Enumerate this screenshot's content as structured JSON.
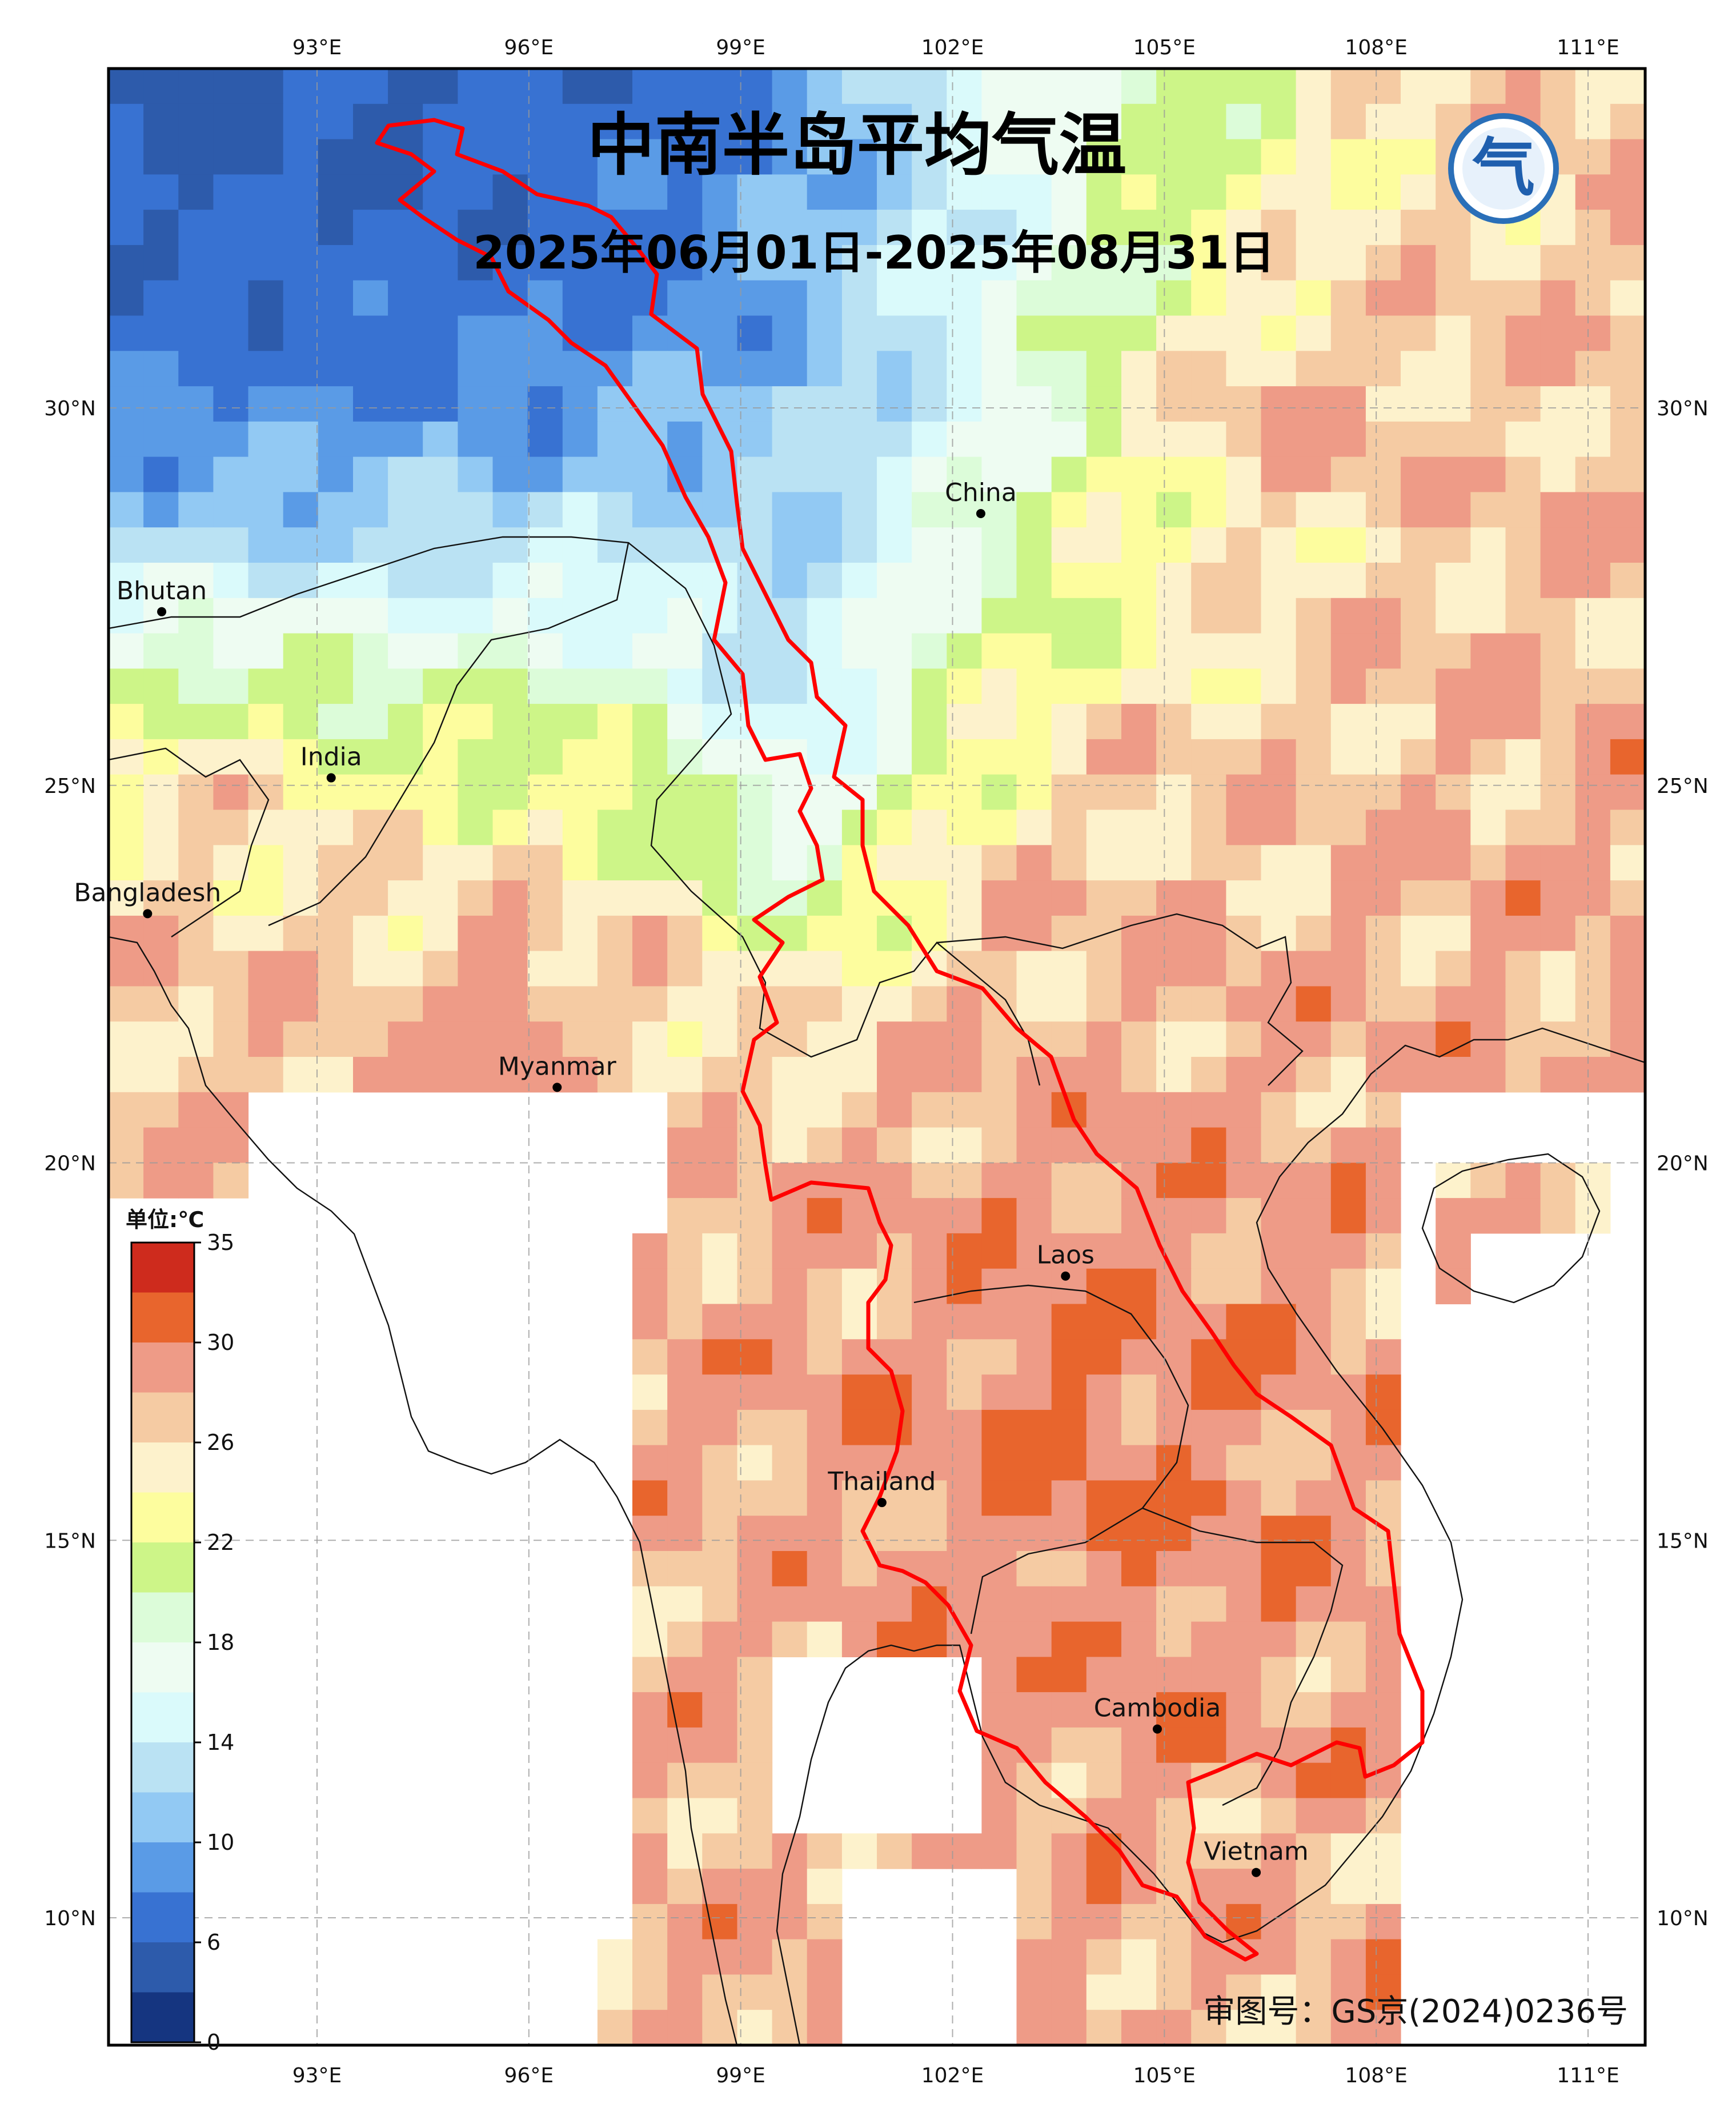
{
  "title": "中南半岛平均气温",
  "subtitle": "2025年06月01日-2025年08月31日",
  "credit": "审图号：GS京(2024)0236号",
  "lon_ticks": [
    "93°E",
    "96°E",
    "99°E",
    "102°E",
    "105°E",
    "108°E",
    "111°E"
  ],
  "lat_ticks": [
    "30°N",
    "25°N",
    "20°N",
    "15°N",
    "10°N"
  ],
  "colorbar": {
    "unit_label": "单位:℃",
    "tick_labels": [
      "35",
      "30",
      "26",
      "22",
      "18",
      "14",
      "10",
      "6",
      "0"
    ],
    "colors": [
      "#ce2b1d",
      "#e8652d",
      "#ee9b87",
      "#f5cba3",
      "#fdf2cc",
      "#fdfd9e",
      "#cdf588",
      "#dcfcd9",
      "#eefcf2",
      "#dafafb",
      "#bae2f3",
      "#92c9f3",
      "#5a9be6",
      "#3872d2",
      "#2d5bab",
      "#153580"
    ]
  },
  "places": [
    {
      "name": "China",
      "lon": 102.4,
      "lat": 28.6
    },
    {
      "name": "Bhutan",
      "lon": 90.8,
      "lat": 27.3
    },
    {
      "name": "India",
      "lon": 93.2,
      "lat": 25.1
    },
    {
      "name": "Bangladesh",
      "lon": 90.6,
      "lat": 23.3
    },
    {
      "name": "Myanmar",
      "lon": 96.4,
      "lat": 21.0
    },
    {
      "name": "Laos",
      "lon": 103.6,
      "lat": 18.5
    },
    {
      "name": "Thailand",
      "lon": 101.0,
      "lat": 15.5
    },
    {
      "name": "Cambodia",
      "lon": 104.9,
      "lat": 12.5
    },
    {
      "name": "Vietnam",
      "lon": 106.3,
      "lat": 10.6
    }
  ],
  "logo_glyph": "气"
}
